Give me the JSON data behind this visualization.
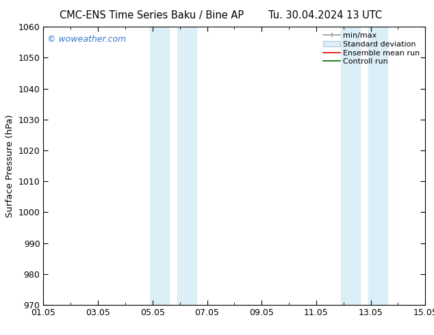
{
  "title": "CMC-ENS Time Series Baku / Bine AP      Tu. 30.04.2024 13 UTC",
  "title_left": "CMC-ENS Time Series Baku / Bine AP",
  "title_right": "Tu. 30.04.2024 13 UTC",
  "ylabel": "Surface Pressure (hPa)",
  "xlim": [
    0,
    14
  ],
  "ylim": [
    970,
    1060
  ],
  "yticks": [
    970,
    980,
    990,
    1000,
    1010,
    1020,
    1030,
    1040,
    1050,
    1060
  ],
  "xtick_labels": [
    "01.05",
    "03.05",
    "05.05",
    "07.05",
    "09.05",
    "11.05",
    "13.05",
    "15.05"
  ],
  "xtick_positions": [
    0,
    2,
    4,
    6,
    8,
    10,
    12,
    14
  ],
  "minor_xtick_positions": [
    1,
    3,
    5,
    7,
    9,
    11,
    13
  ],
  "shaded_bands": [
    {
      "x_start": 3.9,
      "x_end": 4.6
    },
    {
      "x_start": 4.9,
      "x_end": 5.6
    },
    {
      "x_start": 10.9,
      "x_end": 11.6
    },
    {
      "x_start": 11.9,
      "x_end": 12.6
    }
  ],
  "shaded_color": "#dceef8",
  "background_color": "#ffffff",
  "watermark_text": "© woweather.com",
  "watermark_color": "#3377cc",
  "title_fontsize": 10.5,
  "tick_fontsize": 9,
  "legend_fontsize": 8,
  "ylabel_fontsize": 9.5
}
